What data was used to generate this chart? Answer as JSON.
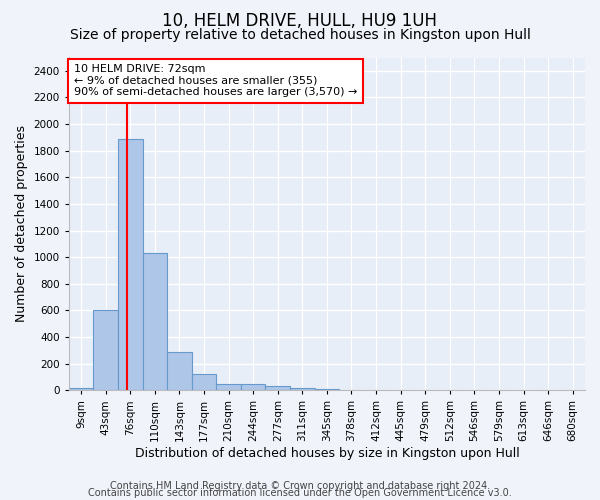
{
  "title": "10, HELM DRIVE, HULL, HU9 1UH",
  "subtitle": "Size of property relative to detached houses in Kingston upon Hull",
  "xlabel": "Distribution of detached houses by size in Kingston upon Hull",
  "ylabel": "Number of detached properties",
  "footer_line1": "Contains HM Land Registry data © Crown copyright and database right 2024.",
  "footer_line2": "Contains public sector information licensed under the Open Government Licence v3.0.",
  "bin_labels": [
    "9sqm",
    "43sqm",
    "76sqm",
    "110sqm",
    "143sqm",
    "177sqm",
    "210sqm",
    "244sqm",
    "277sqm",
    "311sqm",
    "345sqm",
    "378sqm",
    "412sqm",
    "445sqm",
    "479sqm",
    "512sqm",
    "546sqm",
    "579sqm",
    "613sqm",
    "646sqm",
    "680sqm"
  ],
  "bar_values": [
    20,
    600,
    1890,
    1030,
    290,
    120,
    50,
    45,
    30,
    20,
    10,
    0,
    0,
    0,
    0,
    0,
    0,
    0,
    0,
    0,
    0
  ],
  "bar_color": "#aec6e8",
  "bar_edge_color": "#6699cc",
  "property_line_x": 1.85,
  "property_line_color": "red",
  "annotation_line1": "10 HELM DRIVE: 72sqm",
  "annotation_line2": "← 9% of detached houses are smaller (355)",
  "annotation_line3": "90% of semi-detached houses are larger (3,570) →",
  "annotation_box_color": "white",
  "annotation_box_edge_color": "red",
  "ylim": [
    0,
    2500
  ],
  "yticks": [
    0,
    200,
    400,
    600,
    800,
    1000,
    1200,
    1400,
    1600,
    1800,
    2000,
    2200,
    2400
  ],
  "background_color": "#f0f4fa",
  "plot_background_color": "#e8eef8",
  "grid_color": "white",
  "title_fontsize": 12,
  "subtitle_fontsize": 10,
  "axis_label_fontsize": 9,
  "tick_fontsize": 7.5,
  "annotation_fontsize": 8,
  "footer_fontsize": 7
}
